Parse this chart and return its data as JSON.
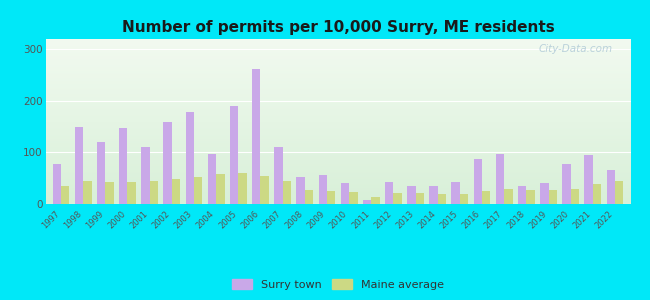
{
  "title": "Number of permits per 10,000 Surry, ME residents",
  "years": [
    1997,
    1998,
    1999,
    2000,
    2001,
    2002,
    2003,
    2004,
    2005,
    2006,
    2007,
    2008,
    2009,
    2010,
    2011,
    2012,
    2013,
    2014,
    2015,
    2016,
    2017,
    2018,
    2019,
    2020,
    2021,
    2022
  ],
  "surry": [
    78,
    150,
    120,
    148,
    110,
    160,
    178,
    97,
    190,
    262,
    110,
    53,
    57,
    40,
    8,
    43,
    35,
    35,
    42,
    88,
    97,
    35,
    40,
    78,
    95,
    65
  ],
  "maine": [
    35,
    45,
    42,
    42,
    45,
    48,
    52,
    58,
    60,
    55,
    45,
    27,
    25,
    23,
    13,
    22,
    22,
    20,
    20,
    25,
    30,
    28,
    28,
    30,
    38,
    45
  ],
  "surry_color": "#c9a8e8",
  "maine_color": "#ccd984",
  "bg_outer": "#00e8f8",
  "ylim": [
    0,
    320
  ],
  "yticks": [
    0,
    100,
    200,
    300
  ],
  "title_fontsize": 11,
  "bar_width": 0.38,
  "watermark": "City-Data.com"
}
